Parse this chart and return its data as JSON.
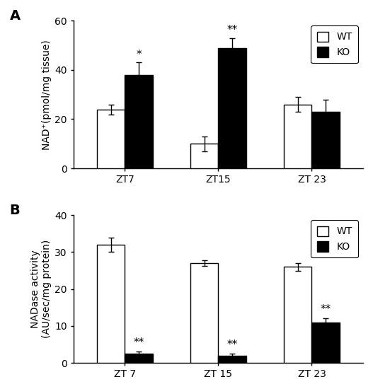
{
  "panel_A": {
    "title": "A",
    "ylabel": "NAD⁺(pmol/mg tissue)",
    "ylim": [
      0,
      60
    ],
    "yticks": [
      0,
      20,
      40,
      60
    ],
    "groups": [
      "ZT7",
      "ZT15",
      "ZT 23"
    ],
    "WT_means": [
      24,
      10,
      26
    ],
    "WT_errors": [
      2,
      3,
      3
    ],
    "KO_means": [
      38,
      49,
      23
    ],
    "KO_errors": [
      5,
      4,
      5
    ],
    "significance": [
      "*",
      "**",
      ""
    ],
    "sig_on": [
      "KO",
      "KO",
      ""
    ]
  },
  "panel_B": {
    "title": "B",
    "ylabel": "NADase activity\n(AU/sec/mg protein)",
    "ylim": [
      0,
      40
    ],
    "yticks": [
      0,
      10,
      20,
      30,
      40
    ],
    "groups": [
      "ZT 7",
      "ZT 15",
      "ZT 23"
    ],
    "WT_means": [
      32,
      27,
      26
    ],
    "WT_errors": [
      2,
      0.8,
      1
    ],
    "KO_means": [
      2.5,
      2,
      11
    ],
    "KO_errors": [
      0.5,
      0.5,
      1
    ],
    "significance": [
      "**",
      "**",
      "**"
    ],
    "sig_on": [
      "KO",
      "KO",
      "KO"
    ]
  },
  "bar_width": 0.3,
  "WT_color": "white",
  "KO_color": "black",
  "edge_color": "black",
  "fontsize": 10,
  "label_fontsize": 10,
  "tick_fontsize": 10
}
